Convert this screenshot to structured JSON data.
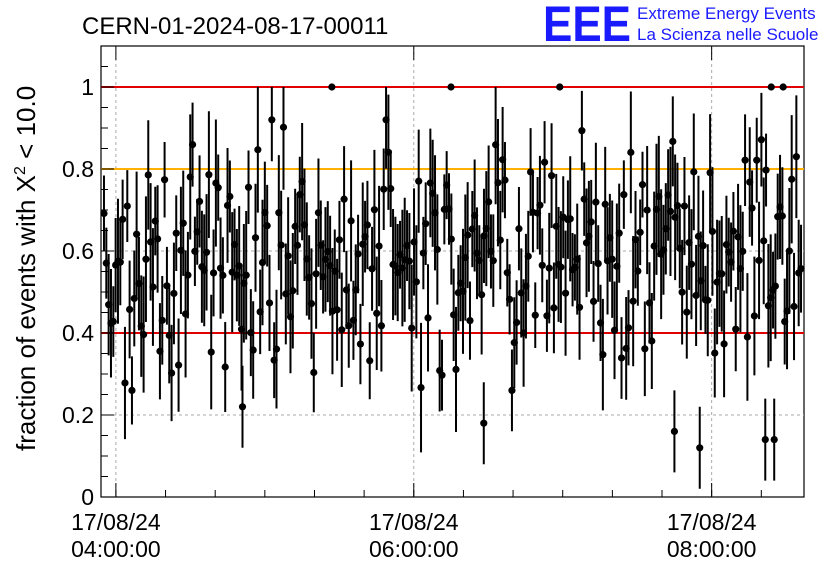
{
  "chart_data": {
    "type": "scatter",
    "title": "CERN-01-2024-08-17-00011",
    "logo": {
      "mark": "EEE",
      "line1": "Extreme Energy Events",
      "line2": "La Scienza nelle Scuole",
      "color": "#1a1aff"
    },
    "ylabel": {
      "prefix": "fraction of events with ",
      "symbol": "X",
      "superscript": "2",
      "suffix": " < 10.0"
    },
    "xlabel": "",
    "ylim": [
      0,
      1.1
    ],
    "xlim_hours": [
      3.9,
      8.62
    ],
    "grid": true,
    "y_ticks": [
      {
        "value": 0,
        "label": "0"
      },
      {
        "value": 0.2,
        "label": "0.2"
      },
      {
        "value": 0.4,
        "label": "0.4"
      },
      {
        "value": 0.6,
        "label": "0.6"
      },
      {
        "value": 0.8,
        "label": "0.8"
      },
      {
        "value": 1,
        "label": "1"
      }
    ],
    "x_ticks": [
      {
        "hours": 4,
        "date": "17/08/24",
        "time": "04:00:00"
      },
      {
        "hours": 6,
        "date": "17/08/24",
        "time": "06:00:00"
      },
      {
        "hours": 8,
        "date": "17/08/24",
        "time": "08:00:00"
      }
    ],
    "reference_lines": [
      {
        "y": 1.0,
        "color": "#e00000"
      },
      {
        "y": 0.8,
        "color": "#ffb000"
      },
      {
        "y": 0.4,
        "color": "#e00000"
      }
    ],
    "marker_color": "#000000",
    "series_seed": 20240817,
    "outliers": [
      {
        "x": 5.45,
        "y": 1.0
      },
      {
        "x": 6.25,
        "y": 1.0
      },
      {
        "x": 6.98,
        "y": 1.0
      },
      {
        "x": 8.4,
        "y": 1.0
      },
      {
        "x": 8.48,
        "y": 1.0
      },
      {
        "x": 7.92,
        "y": 0.12
      },
      {
        "x": 8.36,
        "y": 0.14
      },
      {
        "x": 8.42,
        "y": 0.14
      },
      {
        "x": 7.75,
        "y": 0.16
      },
      {
        "x": 6.47,
        "y": 0.18
      },
      {
        "x": 4.85,
        "y": 0.22
      }
    ],
    "n_points": 300
  }
}
